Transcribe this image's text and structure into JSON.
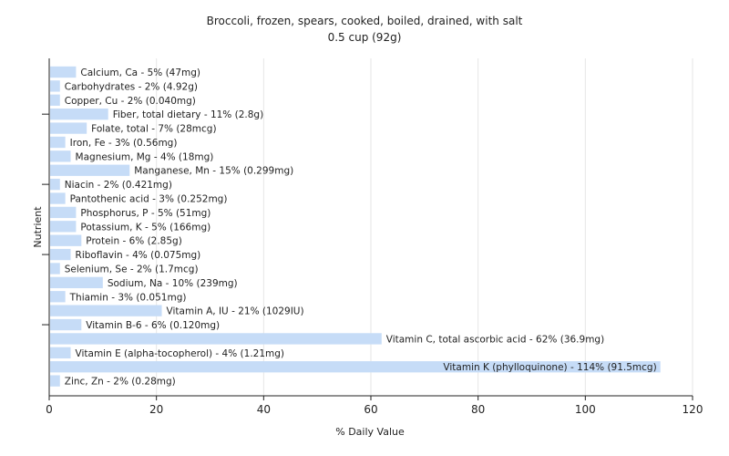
{
  "chart_data": {
    "type": "bar",
    "orientation": "horizontal",
    "title": "Broccoli, frozen, spears, cooked, boiled, drained, with salt",
    "subtitle": "0.5 cup (92g)",
    "xlabel": "% Daily Value",
    "ylabel": "Nutrient",
    "xlim": [
      0,
      120
    ],
    "xticks": [
      0,
      20,
      40,
      60,
      80,
      100,
      120
    ],
    "grid": true,
    "bar_color": "#c6dcf7",
    "categories": [
      "Calcium, Ca",
      "Carbohydrates",
      "Copper, Cu",
      "Fiber, total dietary",
      "Folate, total",
      "Iron, Fe",
      "Magnesium, Mg",
      "Manganese, Mn",
      "Niacin",
      "Pantothenic acid",
      "Phosphorus, P",
      "Potassium, K",
      "Protein",
      "Riboflavin",
      "Selenium, Se",
      "Sodium, Na",
      "Thiamin",
      "Vitamin A, IU",
      "Vitamin B-6",
      "Vitamin C, total ascorbic acid",
      "Vitamin E (alpha-tocopherol)",
      "Vitamin K (phylloquinone)",
      "Zinc, Zn"
    ],
    "values": [
      5,
      2,
      2,
      11,
      7,
      3,
      4,
      15,
      2,
      3,
      5,
      5,
      6,
      4,
      2,
      10,
      3,
      21,
      6,
      62,
      4,
      114,
      2
    ],
    "labels": [
      "Calcium, Ca - 5% (47mg)",
      "Carbohydrates - 2% (4.92g)",
      "Copper, Cu - 2% (0.040mg)",
      "Fiber, total dietary - 11% (2.8g)",
      "Folate, total - 7% (28mcg)",
      "Iron, Fe - 3% (0.56mg)",
      "Magnesium, Mg - 4% (18mg)",
      "Manganese, Mn - 15% (0.299mg)",
      "Niacin - 2% (0.421mg)",
      "Pantothenic acid - 3% (0.252mg)",
      "Phosphorus, P - 5% (51mg)",
      "Potassium, K - 5% (166mg)",
      "Protein - 6% (2.85g)",
      "Riboflavin - 4% (0.075mg)",
      "Selenium, Se - 2% (1.7mcg)",
      "Sodium, Na - 10% (239mg)",
      "Thiamin - 3% (0.051mg)",
      "Vitamin A, IU - 21% (1029IU)",
      "Vitamin B-6 - 6% (0.120mg)",
      "Vitamin C, total ascorbic acid - 62% (36.9mg)",
      "Vitamin E (alpha-tocopherol) - 4% (1.21mg)",
      "Vitamin K (phylloquinone) - 114% (91.5mcg)",
      "Zinc, Zn - 2% (0.28mg)"
    ]
  }
}
